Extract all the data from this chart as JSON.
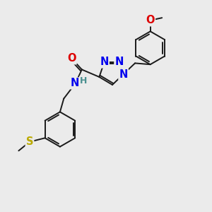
{
  "background_color": "#ebebeb",
  "atom_colors": {
    "C": "#1a1a1a",
    "N": "#0000ee",
    "O": "#dd0000",
    "S": "#bbaa00",
    "H": "#4a9090"
  },
  "bond_color": "#1a1a1a",
  "lw": 1.4,
  "fs": 10.5,
  "xlim": [
    0,
    10
  ],
  "ylim": [
    0,
    10
  ]
}
